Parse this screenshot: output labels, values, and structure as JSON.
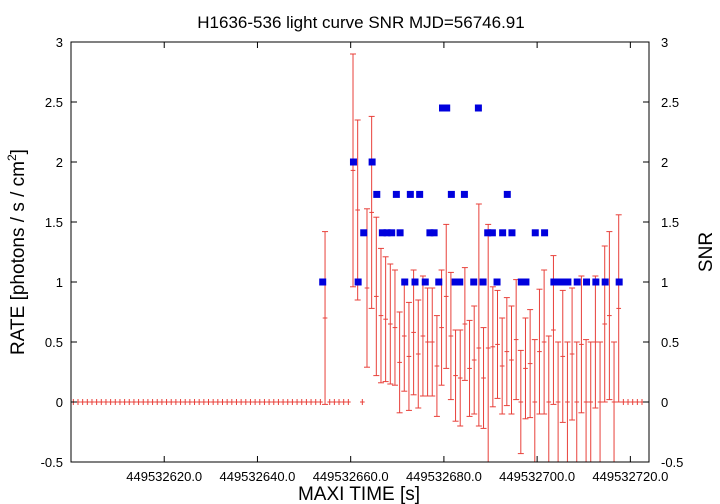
{
  "chart_data": {
    "type": "scatter",
    "title": "H1636-536 light curve  SNR MJD=56746.91",
    "xlabel": "MAXI TIME [s]",
    "ylabel": "RATE [photons / s / cm",
    "ylabel_sup": "2",
    "ylabel_end": "]",
    "y2label": "SNR",
    "xlim": [
      449532600.0,
      449532724.0
    ],
    "ylim": [
      -0.5,
      3
    ],
    "y2lim": [
      -0.5,
      3
    ],
    "xticks": [
      449532620,
      449532640,
      449532660,
      449532680,
      449532700,
      449532720
    ],
    "xtick_labels": [
      "449532620.0",
      "449532640.0",
      "449532660.0",
      "449532680.0",
      "449532700.0",
      "449532720.0"
    ],
    "yticks": [
      -0.5,
      0,
      0.5,
      1,
      1.5,
      2,
      2.5,
      3
    ],
    "ytick_labels": [
      "-0.5",
      "0",
      "0.5",
      "1",
      "1.5",
      "2",
      "2.5",
      "3"
    ],
    "grid": false,
    "colors": {
      "rate": "#e8403a",
      "snr": "#0000dd"
    },
    "series": [
      {
        "kind": "errorbar",
        "x_step": 1.0,
        "x_start": 449532600.0,
        "rate": [
          0,
          0,
          0,
          0,
          0,
          0,
          0,
          0,
          0,
          0,
          0,
          0,
          0,
          0,
          0,
          0,
          0,
          0,
          0,
          0,
          0,
          0,
          0,
          0,
          0,
          0,
          0,
          0,
          0,
          0,
          0,
          0,
          0,
          0,
          0,
          0,
          0,
          0,
          0,
          0,
          0,
          0,
          0,
          0,
          0,
          0,
          0,
          0,
          0,
          0,
          0,
          0,
          0,
          0,
          0.7,
          0,
          0,
          0,
          0,
          0,
          1.93,
          1.6,
          0,
          0.95,
          1.58,
          0.88,
          0.72,
          0.69,
          0.65,
          0.62,
          0.33,
          0.55,
          0.38,
          0.58,
          0.4,
          0.55,
          0.5,
          0.5,
          0.3,
          0.62,
          0.88,
          0.55,
          0.22,
          0.2,
          0.65,
          0.28,
          0.35,
          0.45,
          0.2,
          0.45,
          0.46,
          0.48,
          0.3,
          0.42,
          0.35,
          0.52,
          0,
          0.28,
          0.32,
          0,
          0.42,
          0.5,
          0,
          0.6,
          0,
          0.38,
          0,
          0.4,
          0,
          0.48,
          0,
          0,
          0.5,
          0,
          0.65,
          0.72,
          0,
          0.78,
          0,
          0,
          0,
          0,
          0
        ],
        "err": [
          0,
          0,
          0,
          0,
          0,
          0,
          0,
          0,
          0,
          0,
          0,
          0,
          0,
          0,
          0,
          0,
          0,
          0,
          0,
          0,
          0,
          0,
          0,
          0,
          0,
          0,
          0,
          0,
          0,
          0,
          0,
          0,
          0,
          0,
          0,
          0,
          0,
          0,
          0,
          0,
          0,
          0,
          0,
          0,
          0,
          0,
          0,
          0,
          0,
          0,
          0,
          0,
          0,
          0,
          0.72,
          0,
          0,
          0,
          0,
          0,
          0.97,
          0.75,
          0,
          0.66,
          0.8,
          0.66,
          0.56,
          0.52,
          0.5,
          0.48,
          0.42,
          0.46,
          0.45,
          0.52,
          0.45,
          0.5,
          0.45,
          0.45,
          0.42,
          0.48,
          0.6,
          0.53,
          0.38,
          0.4,
          0.47,
          0.4,
          0.45,
          0.65,
          0.42,
          1.03,
          0.5,
          0.45,
          0.4,
          0.45,
          0.45,
          0.5,
          0.43,
          0.42,
          0.45,
          0.52,
          0.52,
          0.6,
          0.55,
          0.62,
          0.5,
          0.55,
          0.5,
          0.55,
          0.5,
          0.57,
          0.52,
          0.5,
          0.55,
          0.5,
          0.65,
          0.7,
          0.5,
          0.78,
          0,
          0,
          0,
          0,
          0
        ],
        "err_up": [
          0,
          0,
          0,
          0,
          0,
          0,
          0,
          0,
          0,
          0,
          0,
          0,
          0,
          0,
          0,
          0,
          0,
          0,
          0,
          0,
          0,
          0,
          0,
          0,
          0,
          0,
          0,
          0,
          0,
          0,
          0,
          0,
          0,
          0,
          0,
          0,
          0,
          0,
          0,
          0,
          0,
          0,
          0,
          0,
          0,
          0,
          0,
          0,
          0,
          0,
          0,
          0,
          0,
          0,
          0.72,
          0,
          0,
          0,
          0,
          0,
          0.97,
          0.75,
          0,
          0.66,
          0.8,
          0.66,
          0.56,
          0.52,
          0.5,
          0.48,
          0.42,
          0.46,
          0.45,
          0.52,
          0.45,
          0.5,
          0.45,
          0.45,
          0.42,
          0.48,
          0.6,
          0.53,
          0.38,
          0.4,
          0.47,
          0.4,
          0.45,
          1.2,
          0.42,
          1.03,
          0.5,
          0.45,
          0.4,
          0.45,
          0.45,
          0.5,
          0.43,
          0.42,
          0.45,
          0.52,
          0.52,
          0.6,
          0.55,
          0.62,
          0.5,
          0.55,
          0.5,
          0.55,
          0.5,
          0.57,
          0.52,
          0.5,
          0.55,
          0.5,
          0.65,
          0.7,
          0.5,
          0.78,
          0,
          0,
          0,
          0,
          0
        ]
      },
      {
        "kind": "snr_points",
        "x": [
          449532654.0,
          449532660.6,
          449532661.6,
          449532662.8,
          449532664.6,
          449532665.6,
          449532666.8,
          449532667.8,
          449532668.8,
          449532669.8,
          449532670.6,
          449532671.6,
          449532672.8,
          449532673.8,
          449532674.8,
          449532676.0,
          449532677.0,
          449532677.9,
          449532678.9,
          449532679.7,
          449532680.6,
          449532681.6,
          449532682.4,
          449532683.4,
          449532684.4,
          449532686.4,
          449532687.4,
          449532688.4,
          449532689.4,
          449532690.4,
          449532691.4,
          449532692.6,
          449532693.6,
          449532694.6,
          449532696.6,
          449532697.6,
          449532699.6,
          449532701.6,
          449532703.6,
          449532704.6,
          449532705.6,
          449532706.6,
          449532708.6,
          449532710.6,
          449532712.6,
          449532714.6,
          449532717.6
        ],
        "y": [
          1.0,
          2.0,
          1.0,
          1.41,
          2.0,
          1.73,
          1.41,
          1.41,
          1.41,
          1.73,
          1.41,
          1.0,
          1.73,
          1.0,
          1.73,
          1.0,
          1.41,
          1.41,
          1.0,
          2.45,
          2.45,
          1.73,
          1.0,
          1.0,
          1.73,
          1.0,
          2.45,
          1.0,
          1.41,
          1.41,
          1.0,
          1.41,
          1.73,
          1.41,
          1.0,
          1.0,
          1.41,
          1.41,
          1.0,
          1.0,
          1.0,
          1.0,
          1.0,
          1.0,
          1.0,
          1.0,
          1.0
        ]
      }
    ]
  }
}
